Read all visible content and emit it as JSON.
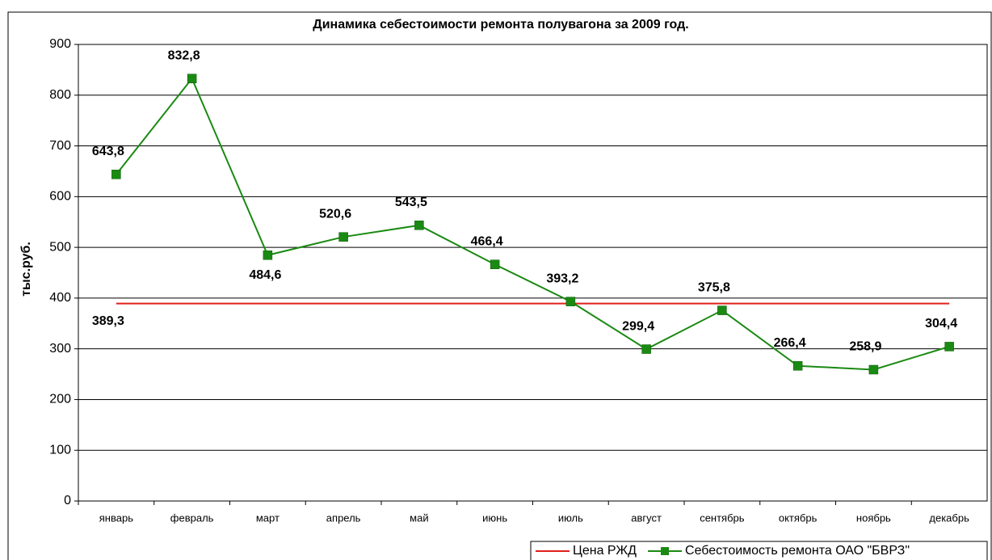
{
  "chart_data": {
    "type": "line",
    "title": "Динамика себестоимости ремонта полувагона за 2009 год.",
    "y_label": "тыс.руб.",
    "categories": [
      "январь",
      "февраль",
      "март",
      "апрель",
      "май",
      "июнь",
      "июль",
      "август",
      "сентябрь",
      "октябрь",
      "ноябрь",
      "декабрь"
    ],
    "series": [
      {
        "name": "Цена РЖД",
        "color": "#e0201b",
        "marker": "none",
        "values": [
          389.3,
          389.3,
          389.3,
          389.3,
          389.3,
          389.3,
          389.3,
          389.3,
          389.3,
          389.3,
          389.3,
          389.3
        ],
        "value_labels": [
          "389,3",
          null,
          null,
          null,
          null,
          null,
          null,
          null,
          null,
          null,
          null,
          null
        ]
      },
      {
        "name": "Себестоимость ремонта ОАО \"БВРЗ\"",
        "color": "#1a8a12",
        "marker": "square",
        "values": [
          643.8,
          832.8,
          484.6,
          520.6,
          543.5,
          466.4,
          393.2,
          299.4,
          375.8,
          266.4,
          258.9,
          304.4
        ],
        "value_labels": [
          "643,8",
          "832,8",
          "484,6",
          "520,6",
          "543,5",
          "466,4",
          "393,2",
          "299,4",
          "375,8",
          "266,4",
          "258,9",
          "304,4"
        ]
      }
    ],
    "ylim": [
      0,
      900
    ],
    "yticks": [
      0,
      100,
      200,
      300,
      400,
      500,
      600,
      700,
      800,
      900
    ],
    "grid": true,
    "legend": "bottom-right"
  }
}
